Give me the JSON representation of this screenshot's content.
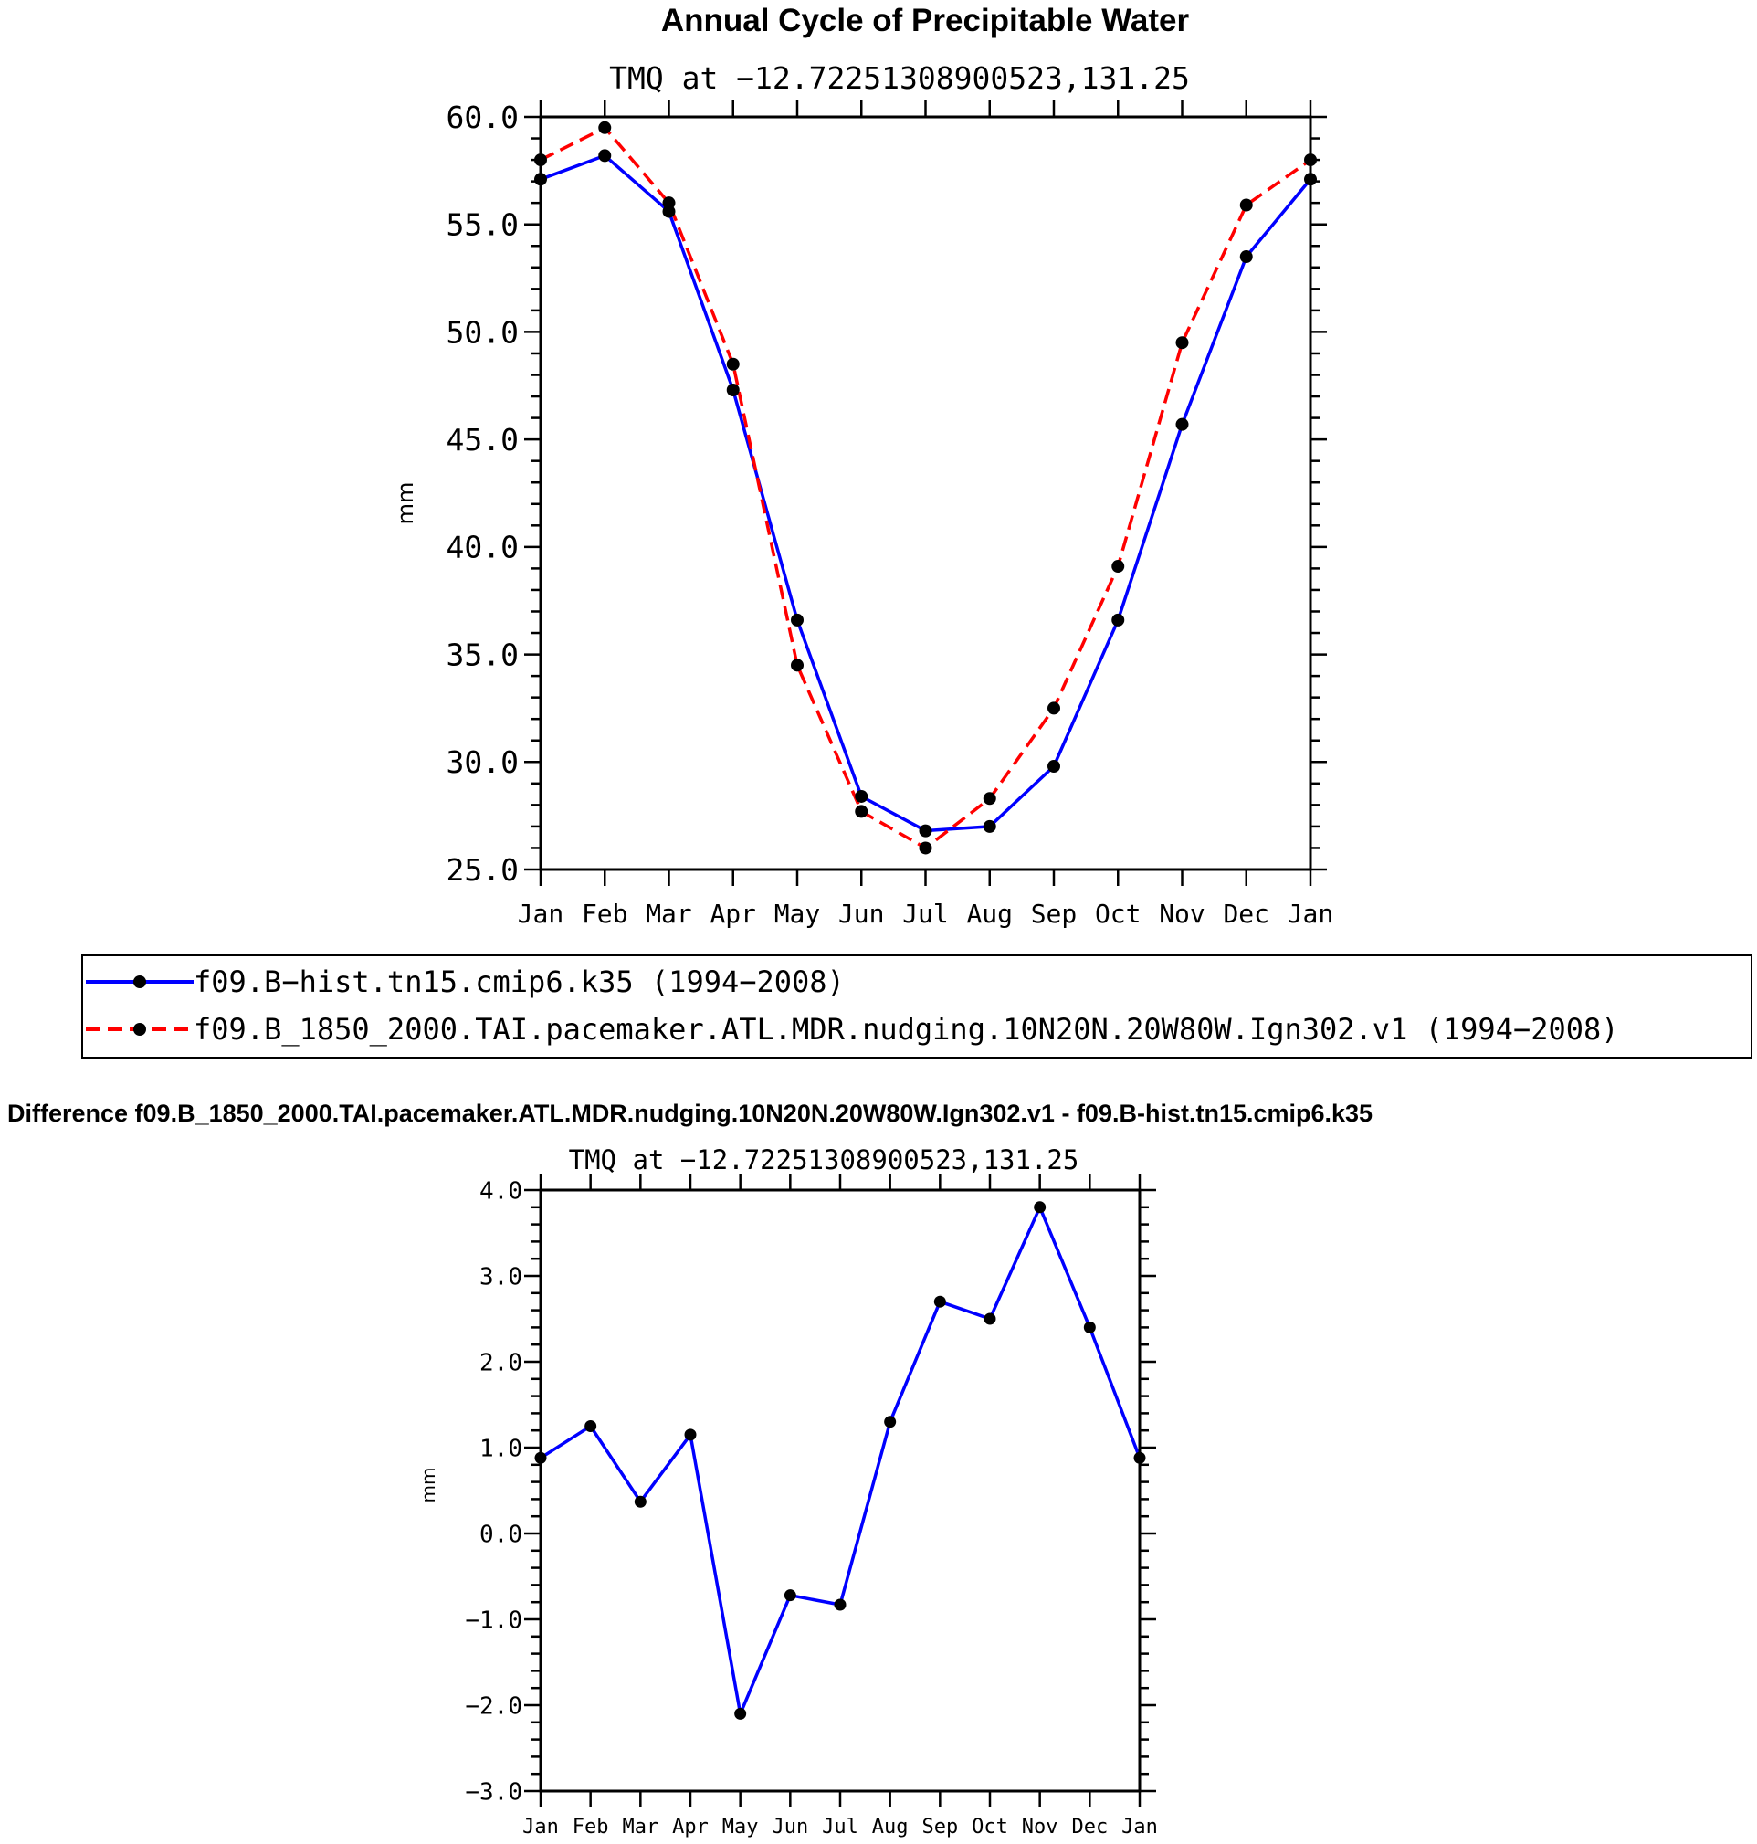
{
  "chart_data": [
    {
      "type": "line",
      "title": "Annual Cycle of Precipitable Water",
      "subtitle": "TMQ at −12.72251308900523,131.25",
      "xlabel": "",
      "ylabel": "mm",
      "categories": [
        "Jan",
        "Feb",
        "Mar",
        "Apr",
        "May",
        "Jun",
        "Jul",
        "Aug",
        "Sep",
        "Oct",
        "Nov",
        "Dec",
        "Jan"
      ],
      "ylim": [
        25.0,
        60.0
      ],
      "yticks": [
        "25.0",
        "30.0",
        "35.0",
        "40.0",
        "45.0",
        "50.0",
        "55.0",
        "60.0"
      ],
      "grid": false,
      "legend_position": "below",
      "series": [
        {
          "name": "f09.B−hist.tn15.cmip6.k35 (1994−2008)",
          "color": "#0000ff",
          "dash": "solid",
          "values": [
            57.1,
            58.2,
            55.6,
            47.3,
            36.6,
            28.4,
            26.8,
            27.0,
            29.8,
            36.6,
            45.7,
            53.5,
            57.1
          ]
        },
        {
          "name": "f09.B_1850_2000.TAI.pacemaker.ATL.MDR.nudging.10N20N.20W80W.Ign302.v1 (1994−2008)",
          "color": "#ff0000",
          "dash": "dashed",
          "values": [
            58.0,
            59.5,
            56.0,
            48.5,
            34.5,
            27.7,
            26.0,
            28.3,
            32.5,
            39.1,
            49.5,
            55.9,
            58.0
          ]
        }
      ]
    },
    {
      "type": "line",
      "title": "Difference f09.B_1850_2000.TAI.pacemaker.ATL.MDR.nudging.10N20N.20W80W.Ign302.v1 - f09.B-hist.tn15.cmip6.k35",
      "subtitle": "TMQ at −12.72251308900523,131.25",
      "xlabel": "",
      "ylabel": "mm",
      "categories": [
        "Jan",
        "Feb",
        "Mar",
        "Apr",
        "May",
        "Jun",
        "Jul",
        "Aug",
        "Sep",
        "Oct",
        "Nov",
        "Dec",
        "Jan"
      ],
      "ylim": [
        -3.0,
        4.0
      ],
      "yticks": [
        "−3.0",
        "−2.0",
        "−1.0",
        "0.0",
        "1.0",
        "2.0",
        "3.0",
        "4.0"
      ],
      "grid": false,
      "series": [
        {
          "color": "#0000ff",
          "dash": "solid",
          "values": [
            0.88,
            1.25,
            0.37,
            1.15,
            -2.1,
            -0.72,
            -0.83,
            1.3,
            2.7,
            2.5,
            3.8,
            2.4,
            0.88
          ]
        }
      ]
    }
  ]
}
